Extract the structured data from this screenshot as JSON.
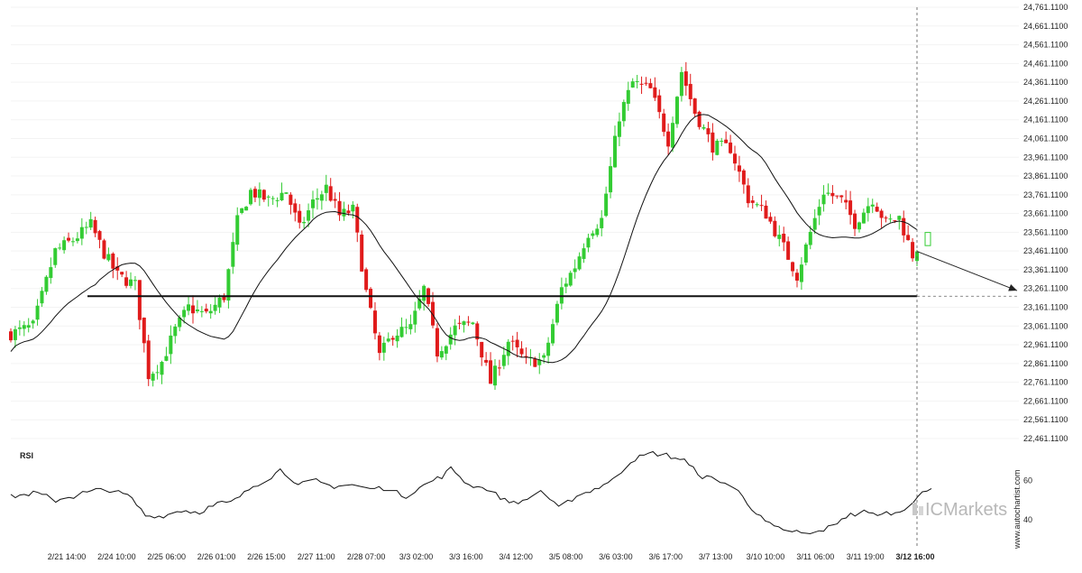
{
  "chart_data": [
    {
      "type": "candlestick",
      "series_name": "",
      "y_ticks": [
        "24,761.1100",
        "24,661.1100",
        "24,561.1100",
        "24,461.1100",
        "24,361.1100",
        "24,261.1100",
        "24,161.1100",
        "24,061.1100",
        "23,961.1100",
        "23,861.1100",
        "23,761.1100",
        "23,661.1100",
        "23,561.1100",
        "23,461.1100",
        "23,361.1100",
        "23,261.1100",
        "23,161.1100",
        "23,061.1100",
        "22,961.1100",
        "22,861.1100",
        "22,761.1100",
        "22,661.1100",
        "22,561.1100",
        "22,461.1100"
      ],
      "ylim": [
        22461.11,
        24761.11
      ],
      "x_ticks": [
        "2/21 14:00",
        "2/24 10:00",
        "2/25 06:00",
        "2/26 01:00",
        "2/26 15:00",
        "2/27 11:00",
        "2/28 07:00",
        "3/3 02:00",
        "3/3 16:00",
        "3/4 12:00",
        "3/5 08:00",
        "3/6 03:00",
        "3/6 17:00",
        "3/7 13:00",
        "3/10 10:00",
        "3/11 06:00",
        "3/11 19:00",
        "3/12 16:00"
      ],
      "highlight_x_tick": "3/12 16:00",
      "support_level": 23220,
      "moving_average": "single line overlay",
      "close_path": [
        [
          0,
          23020
        ],
        [
          5,
          23060
        ],
        [
          10,
          23460
        ],
        [
          14,
          23520
        ],
        [
          18,
          23600
        ],
        [
          21,
          23450
        ],
        [
          24,
          23330
        ],
        [
          28,
          23280
        ],
        [
          31,
          22800
        ],
        [
          34,
          22870
        ],
        [
          37,
          23040
        ],
        [
          40,
          23160
        ],
        [
          44,
          23120
        ],
        [
          48,
          23220
        ],
        [
          51,
          23620
        ],
        [
          54,
          23780
        ],
        [
          58,
          23730
        ],
        [
          62,
          23780
        ],
        [
          65,
          23580
        ],
        [
          68,
          23720
        ],
        [
          71,
          23800
        ],
        [
          74,
          23650
        ],
        [
          77,
          23680
        ],
        [
          80,
          23240
        ],
        [
          83,
          22900
        ],
        [
          86,
          23020
        ],
        [
          90,
          23050
        ],
        [
          93,
          23260
        ],
        [
          96,
          22920
        ],
        [
          100,
          23050
        ],
        [
          104,
          23080
        ],
        [
          108,
          22760
        ],
        [
          112,
          22980
        ],
        [
          116,
          22870
        ],
        [
          120,
          22880
        ],
        [
          124,
          23260
        ],
        [
          127,
          23380
        ],
        [
          130,
          23560
        ],
        [
          133,
          23630
        ],
        [
          137,
          24180
        ],
        [
          140,
          24360
        ],
        [
          144,
          24320
        ],
        [
          148,
          24050
        ],
        [
          151,
          24420
        ],
        [
          154,
          24200
        ],
        [
          158,
          24020
        ],
        [
          162,
          24010
        ],
        [
          166,
          23740
        ],
        [
          170,
          23660
        ],
        [
          174,
          23480
        ],
        [
          177,
          23330
        ],
        [
          180,
          23560
        ],
        [
          183,
          23780
        ],
        [
          187,
          23730
        ],
        [
          190,
          23610
        ],
        [
          194,
          23740
        ],
        [
          197,
          23610
        ],
        [
          200,
          23640
        ],
        [
          203,
          23440
        ],
        [
          205,
          23520
        ]
      ],
      "last_candle_index": 204,
      "projection_end_value": 23250
    },
    {
      "type": "line",
      "title": "RSI",
      "y_ticks": [
        60,
        40
      ],
      "ylim": [
        30,
        75
      ],
      "path": [
        [
          0,
          52
        ],
        [
          6,
          54
        ],
        [
          10,
          50
        ],
        [
          14,
          52
        ],
        [
          18,
          55
        ],
        [
          22,
          55
        ],
        [
          26,
          53
        ],
        [
          30,
          42
        ],
        [
          34,
          42
        ],
        [
          38,
          45
        ],
        [
          42,
          44
        ],
        [
          46,
          48
        ],
        [
          50,
          50
        ],
        [
          54,
          57
        ],
        [
          58,
          62
        ],
        [
          60,
          66
        ],
        [
          64,
          58
        ],
        [
          68,
          60
        ],
        [
          72,
          57
        ],
        [
          76,
          58
        ],
        [
          80,
          56
        ],
        [
          84,
          56
        ],
        [
          88,
          52
        ],
        [
          92,
          58
        ],
        [
          96,
          62
        ],
        [
          98,
          66
        ],
        [
          102,
          58
        ],
        [
          106,
          56
        ],
        [
          110,
          50
        ],
        [
          114,
          49
        ],
        [
          118,
          55
        ],
        [
          122,
          46
        ],
        [
          126,
          52
        ],
        [
          130,
          56
        ],
        [
          134,
          60
        ],
        [
          138,
          70
        ],
        [
          142,
          74
        ],
        [
          146,
          73
        ],
        [
          150,
          70
        ],
        [
          154,
          62
        ],
        [
          158,
          60
        ],
        [
          162,
          55
        ],
        [
          166,
          43
        ],
        [
          170,
          36
        ],
        [
          174,
          34
        ],
        [
          178,
          33
        ],
        [
          182,
          36
        ],
        [
          186,
          42
        ],
        [
          190,
          44
        ],
        [
          194,
          43
        ],
        [
          198,
          44
        ],
        [
          202,
          52
        ],
        [
          205,
          56
        ]
      ],
      "last_index": 205
    }
  ],
  "watermark": {
    "brand": "ICMarkets",
    "site": "www.autochartist.com"
  }
}
